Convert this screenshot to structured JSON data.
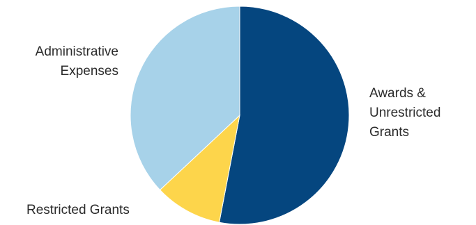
{
  "chart_data": {
    "type": "pie",
    "slices": [
      {
        "label": "Awards & Unrestricted Grants",
        "value": 53,
        "color": "#05467F"
      },
      {
        "label": "Restricted Grants",
        "value": 10,
        "color": "#FDD54B"
      },
      {
        "label": "Administrative Expenses",
        "value": 37,
        "color": "#A7D2E9"
      }
    ],
    "start_angle": "12 o'clock",
    "direction": "clockwise",
    "legend": "none (direct labels)"
  },
  "labels": {
    "awards_line1": "Awards &",
    "awards_line2": "Unrestricted",
    "awards_line3": "Grants",
    "restricted": "Restricted Grants",
    "admin_line1": "Administrative",
    "admin_line2": "Expenses"
  }
}
